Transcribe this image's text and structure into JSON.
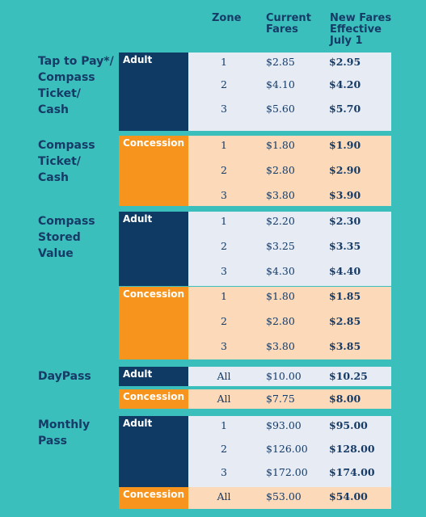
{
  "headers": {
    "zone": "Zone",
    "current": "Current\nFares",
    "new": "New Fares\nEffective\nJuly 1"
  },
  "categories": [
    "Tap to Pay*/\nCompass\nTicket/\nCash",
    "Compass\nTicket/\nCash",
    "Compass\nStored Value",
    "DayPass",
    "Monthly\nPass"
  ],
  "blocks": [
    {
      "label": "Adult",
      "rows": [
        {
          "zone": "1",
          "current": "$2.85",
          "new": "$2.95"
        },
        {
          "zone": "2",
          "current": "$4.10",
          "new": "$4.20"
        },
        {
          "zone": "3",
          "current": "$5.60",
          "new": "$5.70"
        }
      ]
    },
    {
      "label": "Concession",
      "rows": [
        {
          "zone": "1",
          "current": "$1.80",
          "new": "$1.90"
        },
        {
          "zone": "2",
          "current": "$2.80",
          "new": "$2.90"
        },
        {
          "zone": "3",
          "current": "$3.80",
          "new": "$3.90"
        }
      ]
    },
    {
      "label": "Adult",
      "rows": [
        {
          "zone": "1",
          "current": "$2.20",
          "new": "$2.30"
        },
        {
          "zone": "2",
          "current": "$3.25",
          "new": "$3.35"
        },
        {
          "zone": "3",
          "current": "$4.30",
          "new": "$4.40"
        }
      ]
    },
    {
      "label": "Concession",
      "rows": [
        {
          "zone": "1",
          "current": "$1.80",
          "new": "$1.85"
        },
        {
          "zone": "2",
          "current": "$2.80",
          "new": "$2.85"
        },
        {
          "zone": "3",
          "current": "$3.80",
          "new": "$3.85"
        }
      ]
    },
    {
      "label": "Adult",
      "rows": [
        {
          "zone": "All",
          "current": "$10.00",
          "new": "$10.25"
        }
      ]
    },
    {
      "label": "Concession",
      "rows": [
        {
          "zone": "All",
          "current": "$7.75",
          "new": "$8.00"
        }
      ]
    },
    {
      "label": "Adult",
      "rows": [
        {
          "zone": "1",
          "current": "$93.00",
          "new": "$95.00"
        },
        {
          "zone": "2",
          "current": "$126.00",
          "new": "$128.00"
        },
        {
          "zone": "3",
          "current": "$172.00",
          "new": "$174.00"
        }
      ]
    },
    {
      "label": "Concession",
      "rows": [
        {
          "zone": "All",
          "current": "$53.00",
          "new": "$54.00"
        }
      ]
    }
  ]
}
